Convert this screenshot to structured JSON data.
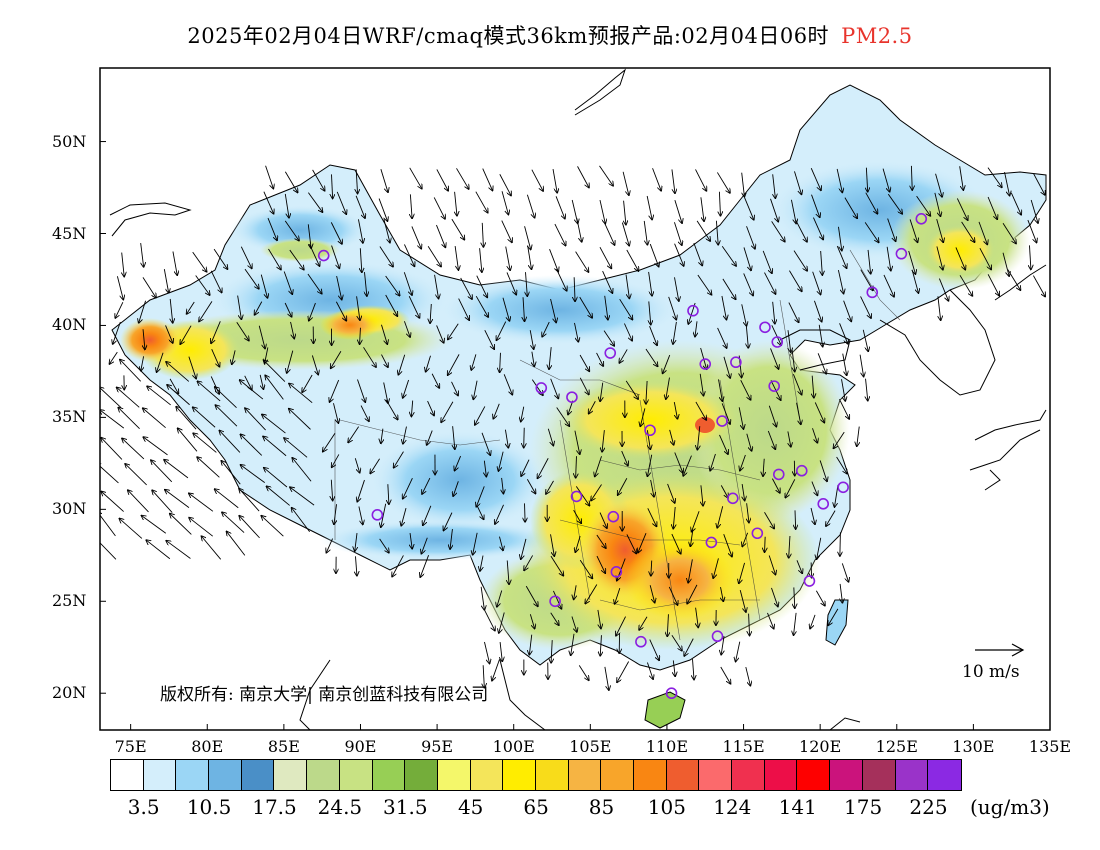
{
  "title": {
    "main": "2025年02月04日WRF/cmaq模式36km预报产品:02月04日06时",
    "variable": "PM2.5",
    "variable_color": "#e8342c"
  },
  "axes": {
    "lat_labels": [
      "50N",
      "45N",
      "40N",
      "35N",
      "30N",
      "25N",
      "20N"
    ],
    "lat_values": [
      50,
      45,
      40,
      35,
      30,
      25,
      20
    ],
    "lon_labels": [
      "75E",
      "80E",
      "85E",
      "90E",
      "95E",
      "100E",
      "105E",
      "110E",
      "115E",
      "120E",
      "125E",
      "130E",
      "135E"
    ],
    "lon_values": [
      75,
      80,
      85,
      90,
      95,
      100,
      105,
      110,
      115,
      120,
      125,
      130,
      135
    ]
  },
  "colorbar": {
    "colors": [
      "#ffffff",
      "#d4eefb",
      "#9bd6f5",
      "#6eb4e3",
      "#4a8fc7",
      "#dfe9c0",
      "#bcd98a",
      "#c8e283",
      "#97cf55",
      "#74ad3a",
      "#f4f76a",
      "#f4e55a",
      "#ffed00",
      "#f8dc1a",
      "#f6b443",
      "#f8a52a",
      "#f98612",
      "#ef5d2f",
      "#fb6a6c",
      "#f0304f",
      "#ed0e48",
      "#fe0000",
      "#cb137c",
      "#a5305b",
      "#9a33c9",
      "#8b29e3"
    ],
    "labels": [
      "3.5",
      "10.5",
      "17.5",
      "24.5",
      "31.5",
      "45",
      "65",
      "85",
      "105",
      "124",
      "141",
      "175",
      "225"
    ],
    "units": "(ug/m3)"
  },
  "copyright": "版权所有: 南京大学| 南京创蓝科技有限公司",
  "vector_legend": "10 m/s",
  "map": {
    "type": "PM2.5 concentration forecast with wind vectors",
    "region": "China",
    "lon_range": [
      73,
      135
    ],
    "lat_range": [
      18,
      54
    ],
    "hotspots": [
      {
        "lon": 108,
        "lat": 28,
        "level": "105-124"
      },
      {
        "lon": 111,
        "lat": 26,
        "level": "85-105"
      },
      {
        "lon": 77,
        "lat": 39,
        "level": "85-105"
      },
      {
        "lon": 87,
        "lat": 40,
        "level": "65-85"
      }
    ],
    "station_color": "#8a1fe0",
    "stations": [
      {
        "lon": 87.6,
        "lat": 43.8
      },
      {
        "lon": 111.7,
        "lat": 40.8
      },
      {
        "lon": 101.8,
        "lat": 36.6
      },
      {
        "lon": 103.8,
        "lat": 36.1
      },
      {
        "lon": 106.3,
        "lat": 38.5
      },
      {
        "lon": 112.5,
        "lat": 37.9
      },
      {
        "lon": 114.5,
        "lat": 38.0
      },
      {
        "lon": 116.4,
        "lat": 39.9
      },
      {
        "lon": 117.2,
        "lat": 39.1
      },
      {
        "lon": 123.4,
        "lat": 41.8
      },
      {
        "lon": 125.3,
        "lat": 43.9
      },
      {
        "lon": 126.6,
        "lat": 45.8
      },
      {
        "lon": 117.0,
        "lat": 36.7
      },
      {
        "lon": 113.6,
        "lat": 34.8
      },
      {
        "lon": 108.9,
        "lat": 34.3
      },
      {
        "lon": 104.1,
        "lat": 30.7
      },
      {
        "lon": 106.5,
        "lat": 29.6
      },
      {
        "lon": 114.3,
        "lat": 30.6
      },
      {
        "lon": 117.3,
        "lat": 31.9
      },
      {
        "lon": 118.8,
        "lat": 32.1
      },
      {
        "lon": 121.5,
        "lat": 31.2
      },
      {
        "lon": 120.2,
        "lat": 30.3
      },
      {
        "lon": 112.9,
        "lat": 28.2
      },
      {
        "lon": 115.9,
        "lat": 28.7
      },
      {
        "lon": 119.3,
        "lat": 26.1
      },
      {
        "lon": 106.7,
        "lat": 26.6
      },
      {
        "lon": 102.7,
        "lat": 25.0
      },
      {
        "lon": 108.3,
        "lat": 22.8
      },
      {
        "lon": 113.3,
        "lat": 23.1
      },
      {
        "lon": 110.3,
        "lat": 20.0
      },
      {
        "lon": 91.1,
        "lat": 29.7
      }
    ]
  }
}
